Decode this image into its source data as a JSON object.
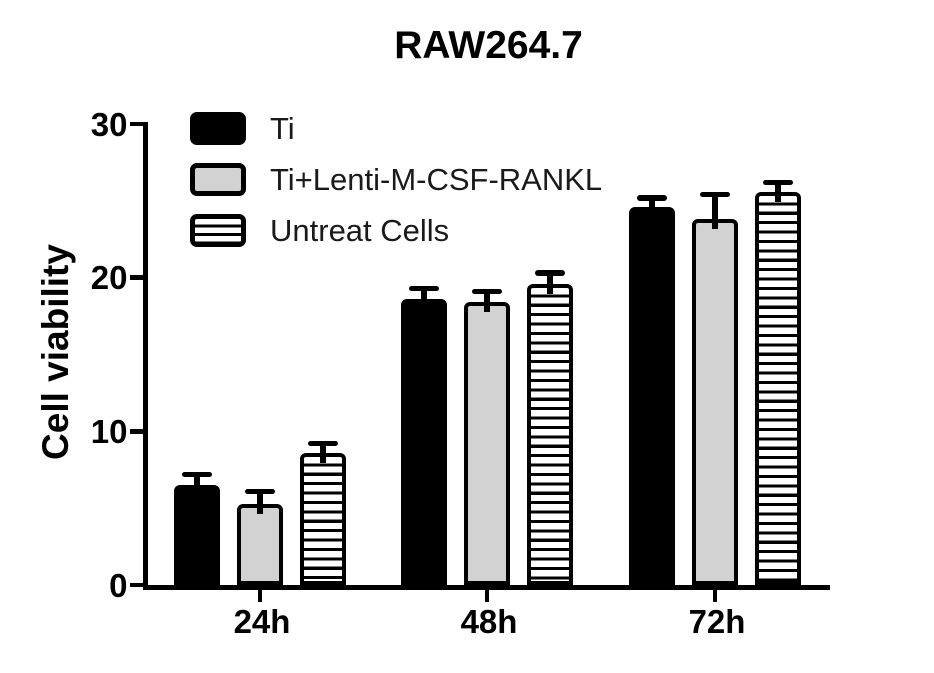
{
  "title": "RAW264.7",
  "colors": {
    "ink": "#000000",
    "bar_gray": "#d2d2d2",
    "background": "#ffffff",
    "legend_text": "#1a1a1a"
  },
  "chart_data": {
    "type": "bar",
    "title": "RAW264.7",
    "xlabel": "",
    "ylabel": "Cell viability",
    "categories": [
      "24h",
      "48h",
      "72h"
    ],
    "series": [
      {
        "name": "Ti",
        "fill": "black",
        "values": [
          6.5,
          18.6,
          24.6
        ],
        "errors": [
          0.7,
          0.7,
          0.6
        ]
      },
      {
        "name": "Ti+Lenti-M-CSF-RANKL",
        "fill": "gray",
        "values": [
          5.3,
          18.4,
          23.8
        ],
        "errors": [
          0.8,
          0.7,
          1.6
        ]
      },
      {
        "name": "Untreat Cells",
        "fill": "striped",
        "values": [
          8.6,
          19.6,
          25.6
        ],
        "errors": [
          0.6,
          0.7,
          0.6
        ]
      }
    ],
    "ylim": [
      0,
      30
    ],
    "yticks": [
      0,
      10,
      20,
      30
    ],
    "error_bars": "upper",
    "grid": false,
    "legend_position": "upper-left-inside"
  }
}
